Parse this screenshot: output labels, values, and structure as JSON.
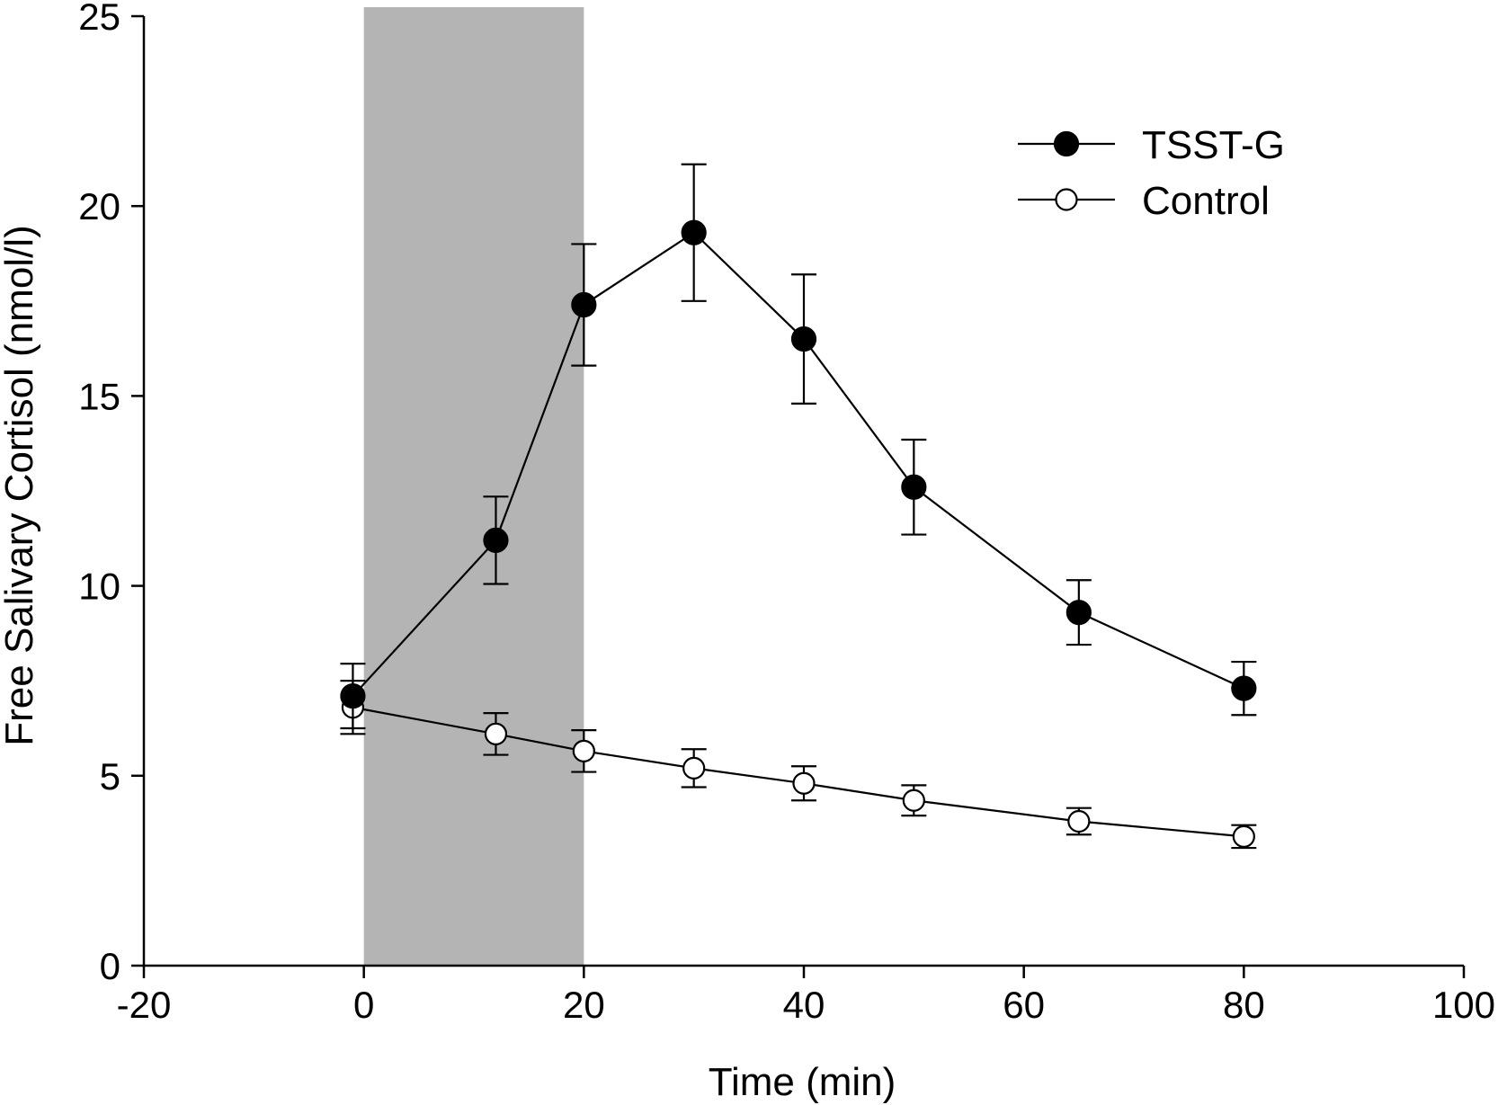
{
  "chart_data": {
    "type": "line",
    "title": "",
    "xlabel": "Time (min)",
    "ylabel": "Free Salivary Cortisol (nmol/l)",
    "xlim": [
      -20,
      100
    ],
    "ylim": [
      0,
      25
    ],
    "xticks": [
      -20,
      0,
      20,
      40,
      60,
      80,
      100
    ],
    "yticks": [
      0,
      5,
      10,
      15,
      20,
      25
    ],
    "grid": false,
    "legend_position": "top-right",
    "shaded_region": {
      "x_start": 0,
      "x_end": 20,
      "color": "#b4b4b4"
    },
    "series": [
      {
        "name": "TSST-G",
        "marker": "filled-circle",
        "x": [
          -1,
          12,
          20,
          30,
          40,
          50,
          65,
          80
        ],
        "values": [
          7.1,
          11.2,
          17.4,
          19.3,
          16.5,
          12.6,
          9.3,
          7.3
        ],
        "error": [
          0.85,
          1.15,
          1.6,
          1.8,
          1.7,
          1.25,
          0.85,
          0.7
        ]
      },
      {
        "name": "Control",
        "marker": "open-circle",
        "x": [
          -1,
          12,
          20,
          30,
          40,
          50,
          65,
          80
        ],
        "values": [
          6.8,
          6.1,
          5.65,
          5.2,
          4.8,
          4.35,
          3.8,
          3.4
        ],
        "error": [
          0.7,
          0.55,
          0.55,
          0.5,
          0.45,
          0.4,
          0.35,
          0.3
        ]
      }
    ]
  }
}
